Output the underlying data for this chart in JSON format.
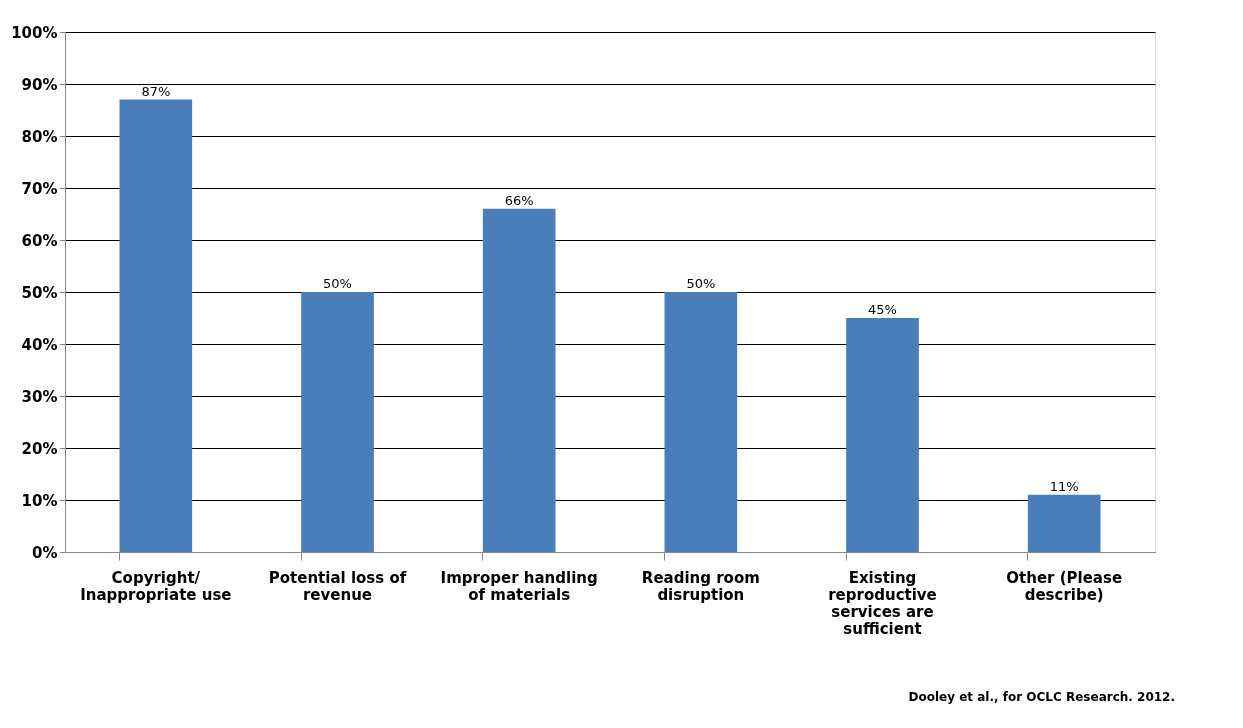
{
  "chart_data": {
    "type": "bar",
    "categories": [
      "Copyright/ Inappropriate use",
      "Potential loss of revenue",
      "Improper handling of materials",
      "Reading room disruption",
      "Existing reproductive services are sufficient",
      "Other (Please describe)"
    ],
    "values": [
      87,
      50,
      66,
      50,
      45,
      11
    ],
    "value_labels": [
      "87%",
      "50%",
      "66%",
      "50%",
      "45%",
      "11%"
    ],
    "color": "#4a7ebb",
    "ylim": [
      0,
      100
    ],
    "yticks": [
      {
        "value": 0,
        "label": "0%"
      },
      {
        "value": 10,
        "label": "10%"
      },
      {
        "value": 20,
        "label": "20%"
      },
      {
        "value": 30,
        "label": "30%"
      },
      {
        "value": 40,
        "label": "40%"
      },
      {
        "value": 50,
        "label": "50%"
      },
      {
        "value": 60,
        "label": "60%"
      },
      {
        "value": 70,
        "label": "70%"
      },
      {
        "value": 80,
        "label": "80%"
      },
      {
        "value": 90,
        "label": "90%"
      },
      {
        "value": 100,
        "label": "100%"
      }
    ],
    "grid": "y",
    "annotations": [
      "Dooley et al., for OCLC Research. 2012."
    ]
  }
}
